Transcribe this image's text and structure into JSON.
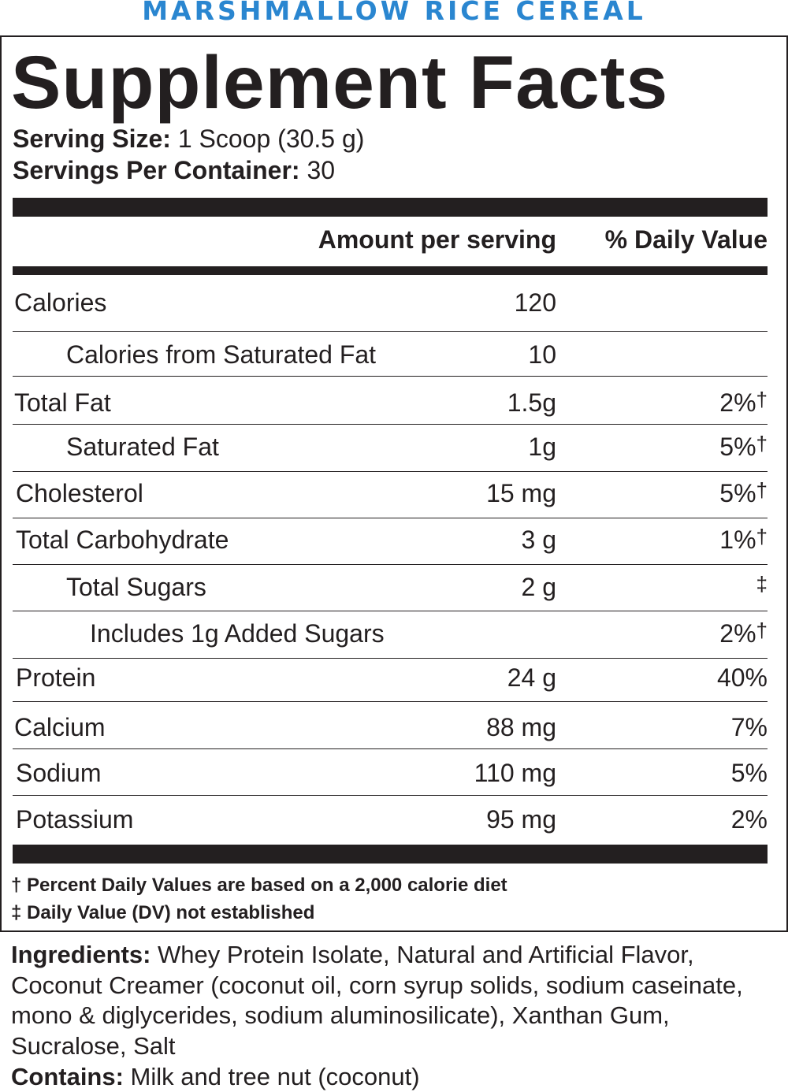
{
  "product_name": "MARSHMALLOW RICE CEREAL",
  "title": "Supplement Facts",
  "serving": {
    "size_label": "Serving Size:",
    "size_value": " 1 Scoop (30.5 g)",
    "per_container_label": "Servings Per Container:",
    "per_container_value": " 30"
  },
  "columns": {
    "amount": "Amount per serving",
    "daily_value": "% Daily Value"
  },
  "rows": [
    {
      "label": "Calories",
      "amount": "120",
      "dv": "",
      "dv_mark": ""
    },
    {
      "label": "Calories from Saturated Fat",
      "amount": "10",
      "dv": "",
      "dv_mark": ""
    },
    {
      "label": "Total Fat",
      "amount": "1.5g",
      "dv": "2%",
      "dv_mark": "†"
    },
    {
      "label": "Saturated Fat",
      "amount": "1g",
      "dv": "5%",
      "dv_mark": "†"
    },
    {
      "label": "Cholesterol",
      "amount": "15 mg",
      "dv": "5%",
      "dv_mark": "†"
    },
    {
      "label": "Total Carbohydrate",
      "amount": "3 g",
      "dv": "1%",
      "dv_mark": "†"
    },
    {
      "label": "Total Sugars",
      "amount": "2 g",
      "dv": "",
      "dv_mark": "‡"
    },
    {
      "label": "Includes 1g Added Sugars",
      "amount": "",
      "dv": "2%",
      "dv_mark": "†"
    },
    {
      "label": "Protein",
      "amount": "24 g",
      "dv": "40%",
      "dv_mark": ""
    },
    {
      "label": "Calcium",
      "amount": "88 mg",
      "dv": "7%",
      "dv_mark": ""
    },
    {
      "label": "Sodium",
      "amount": "110 mg",
      "dv": "5%",
      "dv_mark": ""
    },
    {
      "label": "Potassium",
      "amount": "95 mg",
      "dv": "2%",
      "dv_mark": ""
    }
  ],
  "footnotes": [
    "† Percent Daily Values are based on a 2,000 calorie diet",
    "‡ Daily Value (DV) not established"
  ],
  "ingredients": {
    "label": "Ingredients:",
    "text": " Whey Protein Isolate, Natural and Artificial Flavor, Coconut Creamer (coconut oil, corn syrup solids, sodium caseinate, mono & diglycerides, sodium aluminosilicate), Xanthan Gum, Sucralose, Salt"
  },
  "contains": {
    "label": "Contains:",
    "text": " Milk and tree nut (coconut)"
  },
  "colors": {
    "product_name": "#2a86d0",
    "ink": "#231f20"
  }
}
